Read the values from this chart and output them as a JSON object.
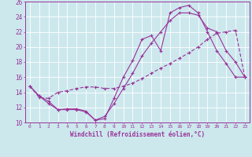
{
  "xlabel": "Windchill (Refroidissement éolien,°C)",
  "bg_color": "#cce8ed",
  "line_color": "#993399",
  "xlim": [
    -0.5,
    23.5
  ],
  "ylim": [
    10,
    26
  ],
  "xticks": [
    0,
    1,
    2,
    3,
    4,
    5,
    6,
    7,
    8,
    9,
    10,
    11,
    12,
    13,
    14,
    15,
    16,
    17,
    18,
    19,
    20,
    21,
    22,
    23
  ],
  "yticks": [
    10,
    12,
    14,
    16,
    18,
    20,
    22,
    24,
    26
  ],
  "line1_x": [
    0,
    1,
    2,
    3,
    4,
    5,
    6,
    7,
    8,
    9,
    10,
    11,
    12,
    13,
    14,
    15,
    16,
    17,
    18,
    19,
    20,
    21,
    22,
    23
  ],
  "line1_y": [
    14.8,
    13.5,
    12.8,
    11.7,
    11.7,
    11.7,
    11.4,
    10.3,
    10.5,
    13.2,
    16.0,
    18.2,
    21.0,
    21.5,
    19.5,
    24.5,
    25.2,
    25.5,
    24.5,
    22.0,
    19.5,
    17.8,
    16.0,
    16.0
  ],
  "line2_x": [
    0,
    1,
    2,
    3,
    4,
    5,
    6,
    7,
    8,
    9,
    10,
    11,
    12,
    13,
    14,
    15,
    16,
    17,
    18,
    19,
    20,
    21,
    22,
    23
  ],
  "line2_y": [
    14.8,
    13.3,
    13.2,
    14.0,
    14.2,
    14.5,
    14.7,
    14.7,
    14.5,
    14.5,
    14.8,
    15.2,
    15.8,
    16.5,
    17.2,
    17.8,
    18.5,
    19.2,
    20.0,
    21.0,
    21.8,
    22.0,
    22.2,
    16.0
  ],
  "line3_x": [
    0,
    1,
    2,
    3,
    4,
    5,
    6,
    7,
    8,
    9,
    10,
    11,
    12,
    13,
    14,
    15,
    16,
    17,
    18,
    19,
    20,
    21,
    22,
    23
  ],
  "line3_y": [
    14.8,
    13.5,
    12.5,
    11.7,
    11.8,
    11.8,
    11.5,
    10.3,
    10.8,
    12.5,
    14.5,
    16.5,
    18.8,
    20.5,
    22.0,
    23.5,
    24.5,
    24.5,
    24.2,
    22.5,
    22.0,
    19.5,
    18.0,
    16.0
  ]
}
